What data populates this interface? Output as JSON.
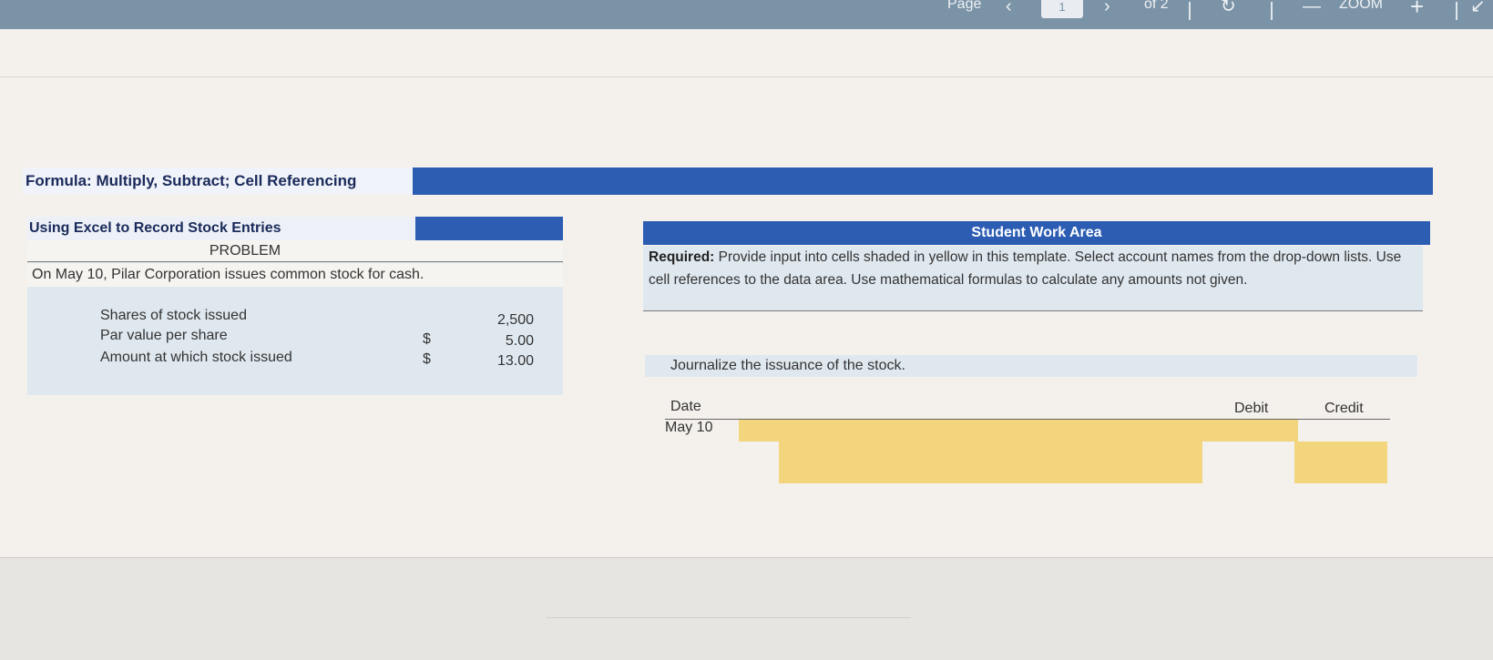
{
  "toolbar": {
    "page_label": "Page",
    "page_number": "1",
    "page_of": "of 2",
    "zoom_label": "ZOOM",
    "zoom_out": "—",
    "zoom_in": "+"
  },
  "banner": {
    "title": "Formula: Multiply, Subtract; Cell Referencing"
  },
  "problem_panel": {
    "title": "Using Excel to Record Stock Entries",
    "section": "PROBLEM",
    "text": "On May 10, Pilar Corporation issues common stock for cash.",
    "rows": [
      {
        "label": "Shares of stock issued",
        "currency": "",
        "value": "2,500"
      },
      {
        "label": "Par value per share",
        "currency": "$",
        "value": "5.00"
      },
      {
        "label": "Amount at which stock issued",
        "currency": "$",
        "value": "13.00"
      }
    ]
  },
  "work_area": {
    "title": "Student Work Area",
    "required_label": "Required:",
    "required_text": " Provide input into cells shaded in yellow in this template. Select account names from the drop-down lists. Use cell references to the data area. Use mathematical formulas to calculate any amounts not given.",
    "instruction": "Journalize the issuance of the stock.",
    "headers": {
      "date": "Date",
      "debit": "Debit",
      "credit": "Credit"
    },
    "date_value": "May 10"
  },
  "colors": {
    "header_blue": "#2c5db3",
    "input_yellow": "#f2d57d",
    "panel_blue": "#dfe8ef"
  }
}
